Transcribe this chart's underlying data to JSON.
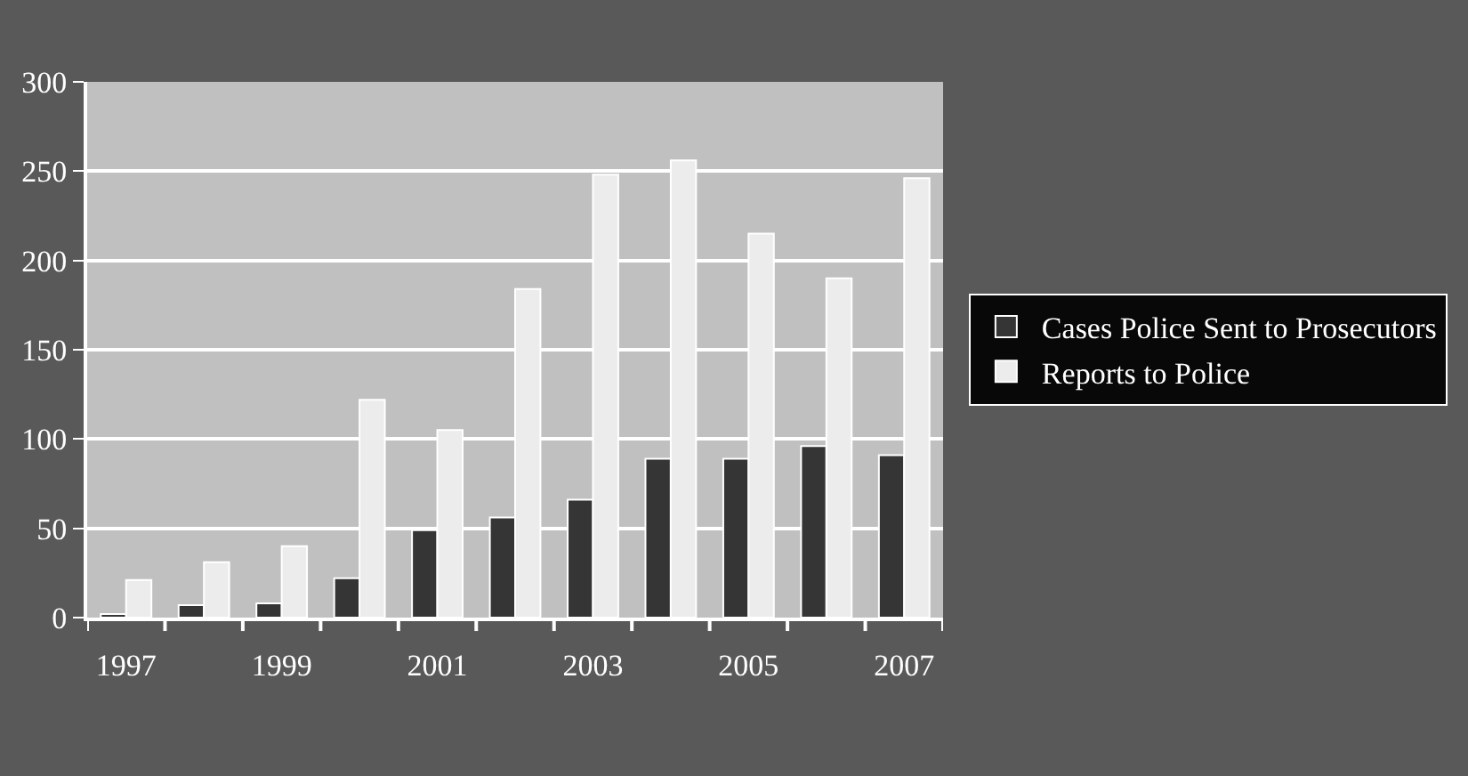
{
  "chart_data": {
    "type": "bar",
    "categories": [
      "1997",
      null,
      "1999",
      null,
      "2001",
      null,
      "2003",
      null,
      "2005",
      null,
      "2007"
    ],
    "series": [
      {
        "name": "Cases Police Sent to Prosecutors",
        "color": "#353535",
        "values": [
          2,
          7,
          8,
          22,
          49,
          56,
          66,
          89,
          89,
          96,
          91
        ]
      },
      {
        "name": "Reports to Police",
        "color": "#ececec",
        "values": [
          21,
          31,
          40,
          122,
          105,
          184,
          248,
          256,
          215,
          190,
          246
        ]
      }
    ],
    "ylim": [
      0,
      300
    ],
    "yticks": [
      0,
      50,
      100,
      150,
      200,
      250,
      300
    ],
    "grid": "y",
    "legend": "right"
  }
}
